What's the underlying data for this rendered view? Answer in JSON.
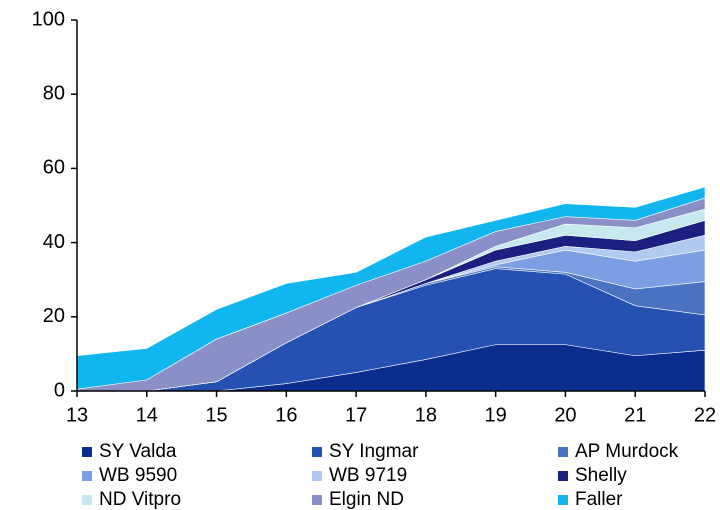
{
  "chart_data": {
    "type": "stacked-area",
    "x": [
      13,
      14,
      15,
      16,
      17,
      18,
      19,
      20,
      21,
      22
    ],
    "xlim": [
      13,
      22
    ],
    "xticks": [
      13,
      14,
      15,
      16,
      17,
      18,
      19,
      20,
      21,
      22
    ],
    "ylim": [
      0,
      100
    ],
    "yticks": [
      0,
      20,
      40,
      60,
      80,
      100
    ],
    "grid": false,
    "legend": "bottom",
    "series": [
      {
        "name": "SY Valda",
        "color": "#0b2e8e",
        "values": [
          0,
          0,
          0,
          2,
          5,
          8.5,
          12.5,
          12.5,
          9.5,
          11
        ]
      },
      {
        "name": "SY Ingmar",
        "color": "#2451b2",
        "values": [
          0,
          0,
          2.5,
          11,
          17.5,
          20,
          20.5,
          19,
          13.5,
          9.5
        ]
      },
      {
        "name": "AP Murdock",
        "color": "#4a72c2",
        "values": [
          0,
          0,
          0,
          0,
          0,
          0.5,
          0.5,
          0.5,
          4.5,
          9
        ]
      },
      {
        "name": "WB 9590",
        "color": "#7c9ee2",
        "values": [
          0,
          0,
          0,
          0,
          0,
          0,
          0.5,
          6,
          7.5,
          8.5
        ]
      },
      {
        "name": "WB 9719",
        "color": "#b2c9f2",
        "values": [
          0,
          0,
          0,
          0,
          0,
          0,
          1,
          1,
          2.5,
          4
        ]
      },
      {
        "name": "Shelly",
        "color": "#1b1f80",
        "values": [
          0,
          0,
          0,
          0,
          0,
          1,
          3,
          3,
          3,
          4
        ]
      },
      {
        "name": "ND Vitpro",
        "color": "#c8e8f0",
        "values": [
          0,
          0,
          0,
          0,
          0,
          0,
          1,
          3,
          3.5,
          3
        ]
      },
      {
        "name": "Elgin ND",
        "color": "#8a8fc8",
        "values": [
          0.5,
          3,
          11.5,
          8,
          6,
          5,
          4,
          2,
          2,
          3
        ]
      },
      {
        "name": "Faller",
        "color": "#12b6ee",
        "values": [
          9,
          8.5,
          8,
          8,
          3.5,
          6.5,
          3,
          3.5,
          3.5,
          3
        ]
      }
    ]
  }
}
